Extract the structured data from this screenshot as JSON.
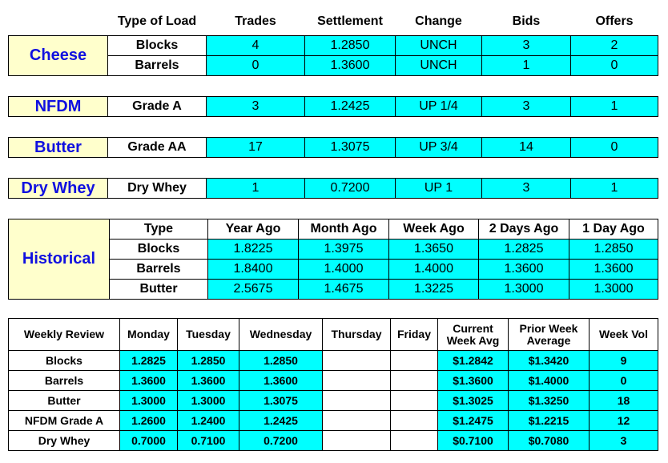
{
  "header": [
    "Type of Load",
    "Trades",
    "Settlement",
    "Change",
    "Bids",
    "Offers"
  ],
  "sections": [
    {
      "name": "Cheese",
      "rows": [
        [
          "Blocks",
          "4",
          "1.2850",
          "UNCH",
          "3",
          "2"
        ],
        [
          "Barrels",
          "0",
          "1.3600",
          "UNCH",
          "1",
          "0"
        ]
      ]
    },
    {
      "name": "NFDM",
      "rows": [
        [
          "Grade A",
          "3",
          "1.2425",
          "UP 1/4",
          "3",
          "1"
        ]
      ]
    },
    {
      "name": "Butter",
      "rows": [
        [
          "Grade AA",
          "17",
          "1.3075",
          "UP 3/4",
          "14",
          "0"
        ]
      ]
    },
    {
      "name": "Dry Whey",
      "rows": [
        [
          "Dry Whey",
          "1",
          "0.7200",
          "UP 1",
          "3",
          "1"
        ]
      ]
    }
  ],
  "historical": {
    "name": "Historical",
    "header": [
      "Type",
      "Year Ago",
      "Month Ago",
      "Week Ago",
      "2 Days Ago",
      "1 Day Ago"
    ],
    "rows": [
      [
        "Blocks",
        "1.8225",
        "1.3975",
        "1.3650",
        "1.2825",
        "1.2850"
      ],
      [
        "Barrels",
        "1.8400",
        "1.4000",
        "1.4000",
        "1.3600",
        "1.3600"
      ],
      [
        "Butter",
        "2.5675",
        "1.4675",
        "1.3225",
        "1.3000",
        "1.3000"
      ]
    ]
  },
  "weekly": {
    "header": [
      "Weekly Review",
      "Monday",
      "Tuesday",
      "Wednesday",
      "Thursday",
      "Friday",
      "Current Week Avg",
      "Prior Week Average",
      "Week Vol"
    ],
    "rows": [
      [
        "Blocks",
        "1.2825",
        "1.2850",
        "1.2850",
        null,
        null,
        "$1.2842",
        "$1.3420",
        "9"
      ],
      [
        "Barrels",
        "1.3600",
        "1.3600",
        "1.3600",
        null,
        null,
        "$1.3600",
        "$1.4000",
        "0"
      ],
      [
        "Butter",
        "1.3000",
        "1.3000",
        "1.3075",
        null,
        null,
        "$1.3025",
        "$1.3250",
        "18"
      ],
      [
        "NFDM Grade A",
        "1.2600",
        "1.2400",
        "1.2425",
        null,
        null,
        "$1.2475",
        "$1.2215",
        "12"
      ],
      [
        "Dry Whey",
        "0.7000",
        "0.7100",
        "0.7200",
        null,
        null,
        "$0.7100",
        "$0.7080",
        "3"
      ]
    ]
  }
}
